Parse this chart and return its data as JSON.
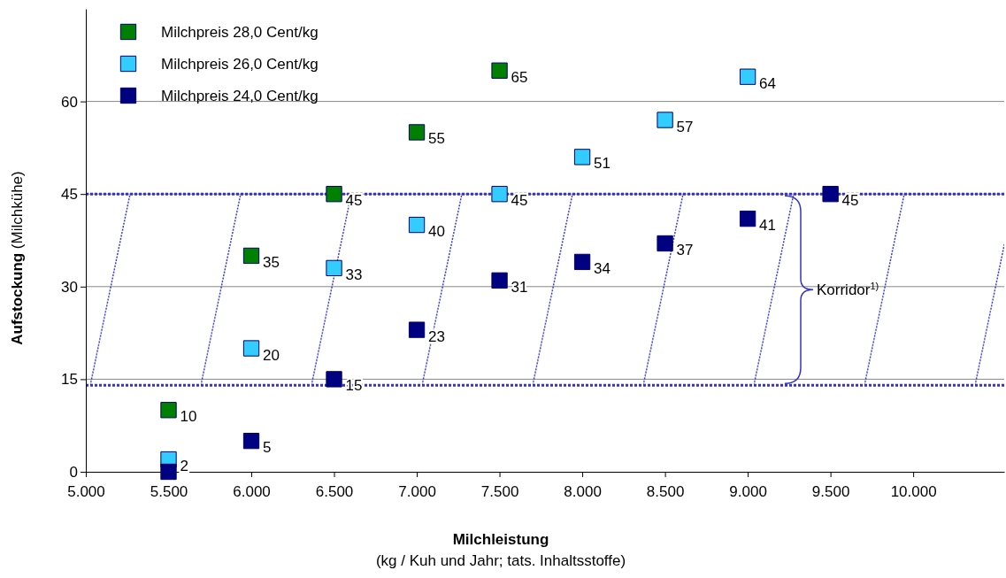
{
  "chart_data": {
    "type": "scatter",
    "xlabel": "Milchleistung\n(kg / Kuh und Jahr; tats. Inhaltsstoffe)",
    "ylabel": "Aufstockung (Milchkühe)",
    "xlim": [
      5000,
      10550
    ],
    "ylim": [
      0,
      75
    ],
    "xticks": [
      {
        "value": 5000,
        "label": "5.000"
      },
      {
        "value": 5500,
        "label": "5.500"
      },
      {
        "value": 6000,
        "label": "6.000"
      },
      {
        "value": 6500,
        "label": "6.500"
      },
      {
        "value": 7000,
        "label": "7.000"
      },
      {
        "value": 7500,
        "label": "7.500"
      },
      {
        "value": 8000,
        "label": "8.000"
      },
      {
        "value": 8500,
        "label": "8.500"
      },
      {
        "value": 9000,
        "label": "9.000"
      },
      {
        "value": 9500,
        "label": "9.500"
      },
      {
        "value": 10000,
        "label": "10.000"
      }
    ],
    "yticks": [
      0,
      15,
      30,
      45,
      60
    ],
    "grid": "y",
    "legend": "top left",
    "marker": "square",
    "ref_lines": [
      {
        "axis": "y",
        "value": 45,
        "color": "#3333cc",
        "line_style": "dotted"
      },
      {
        "axis": "y",
        "value": 14,
        "color": "#3333cc",
        "line_style": "dotted"
      }
    ],
    "bands": [
      {
        "axis": "y",
        "from": 14,
        "to": 45,
        "label": "Korridor$^{1)}$",
        "color": "#3333cc"
      }
    ],
    "series": [
      {
        "name": "Milchpreis 28,0 Cent/kg",
        "color": "#008000",
        "x": [
          5500,
          6000,
          6500,
          7000,
          7500
        ],
        "values": [
          10,
          35,
          45,
          55,
          65
        ],
        "value_labels": [
          "10",
          "35",
          "45",
          "55",
          "65"
        ]
      },
      {
        "name": "Milchpreis 26,0 Cent/kg",
        "color": "#33ccff",
        "x": [
          5500,
          6000,
          6500,
          7000,
          7500,
          8000,
          8500,
          9000
        ],
        "values": [
          2,
          20,
          33,
          40,
          45,
          51,
          57,
          64
        ],
        "value_labels": [
          "2",
          "20",
          "33",
          "40",
          "45",
          "51",
          "57",
          "64"
        ]
      },
      {
        "name": "Milchpreis 24,0 Cent/kg",
        "color": "#000080",
        "x": [
          5500,
          6000,
          6500,
          7000,
          7500,
          8000,
          8500,
          9000,
          9500
        ],
        "values": [
          0,
          5,
          15,
          23,
          31,
          34,
          37,
          41,
          45
        ],
        "value_labels": [
          null,
          "5",
          "15",
          "23",
          "31",
          "34",
          "37",
          "41",
          "45"
        ]
      }
    ]
  }
}
